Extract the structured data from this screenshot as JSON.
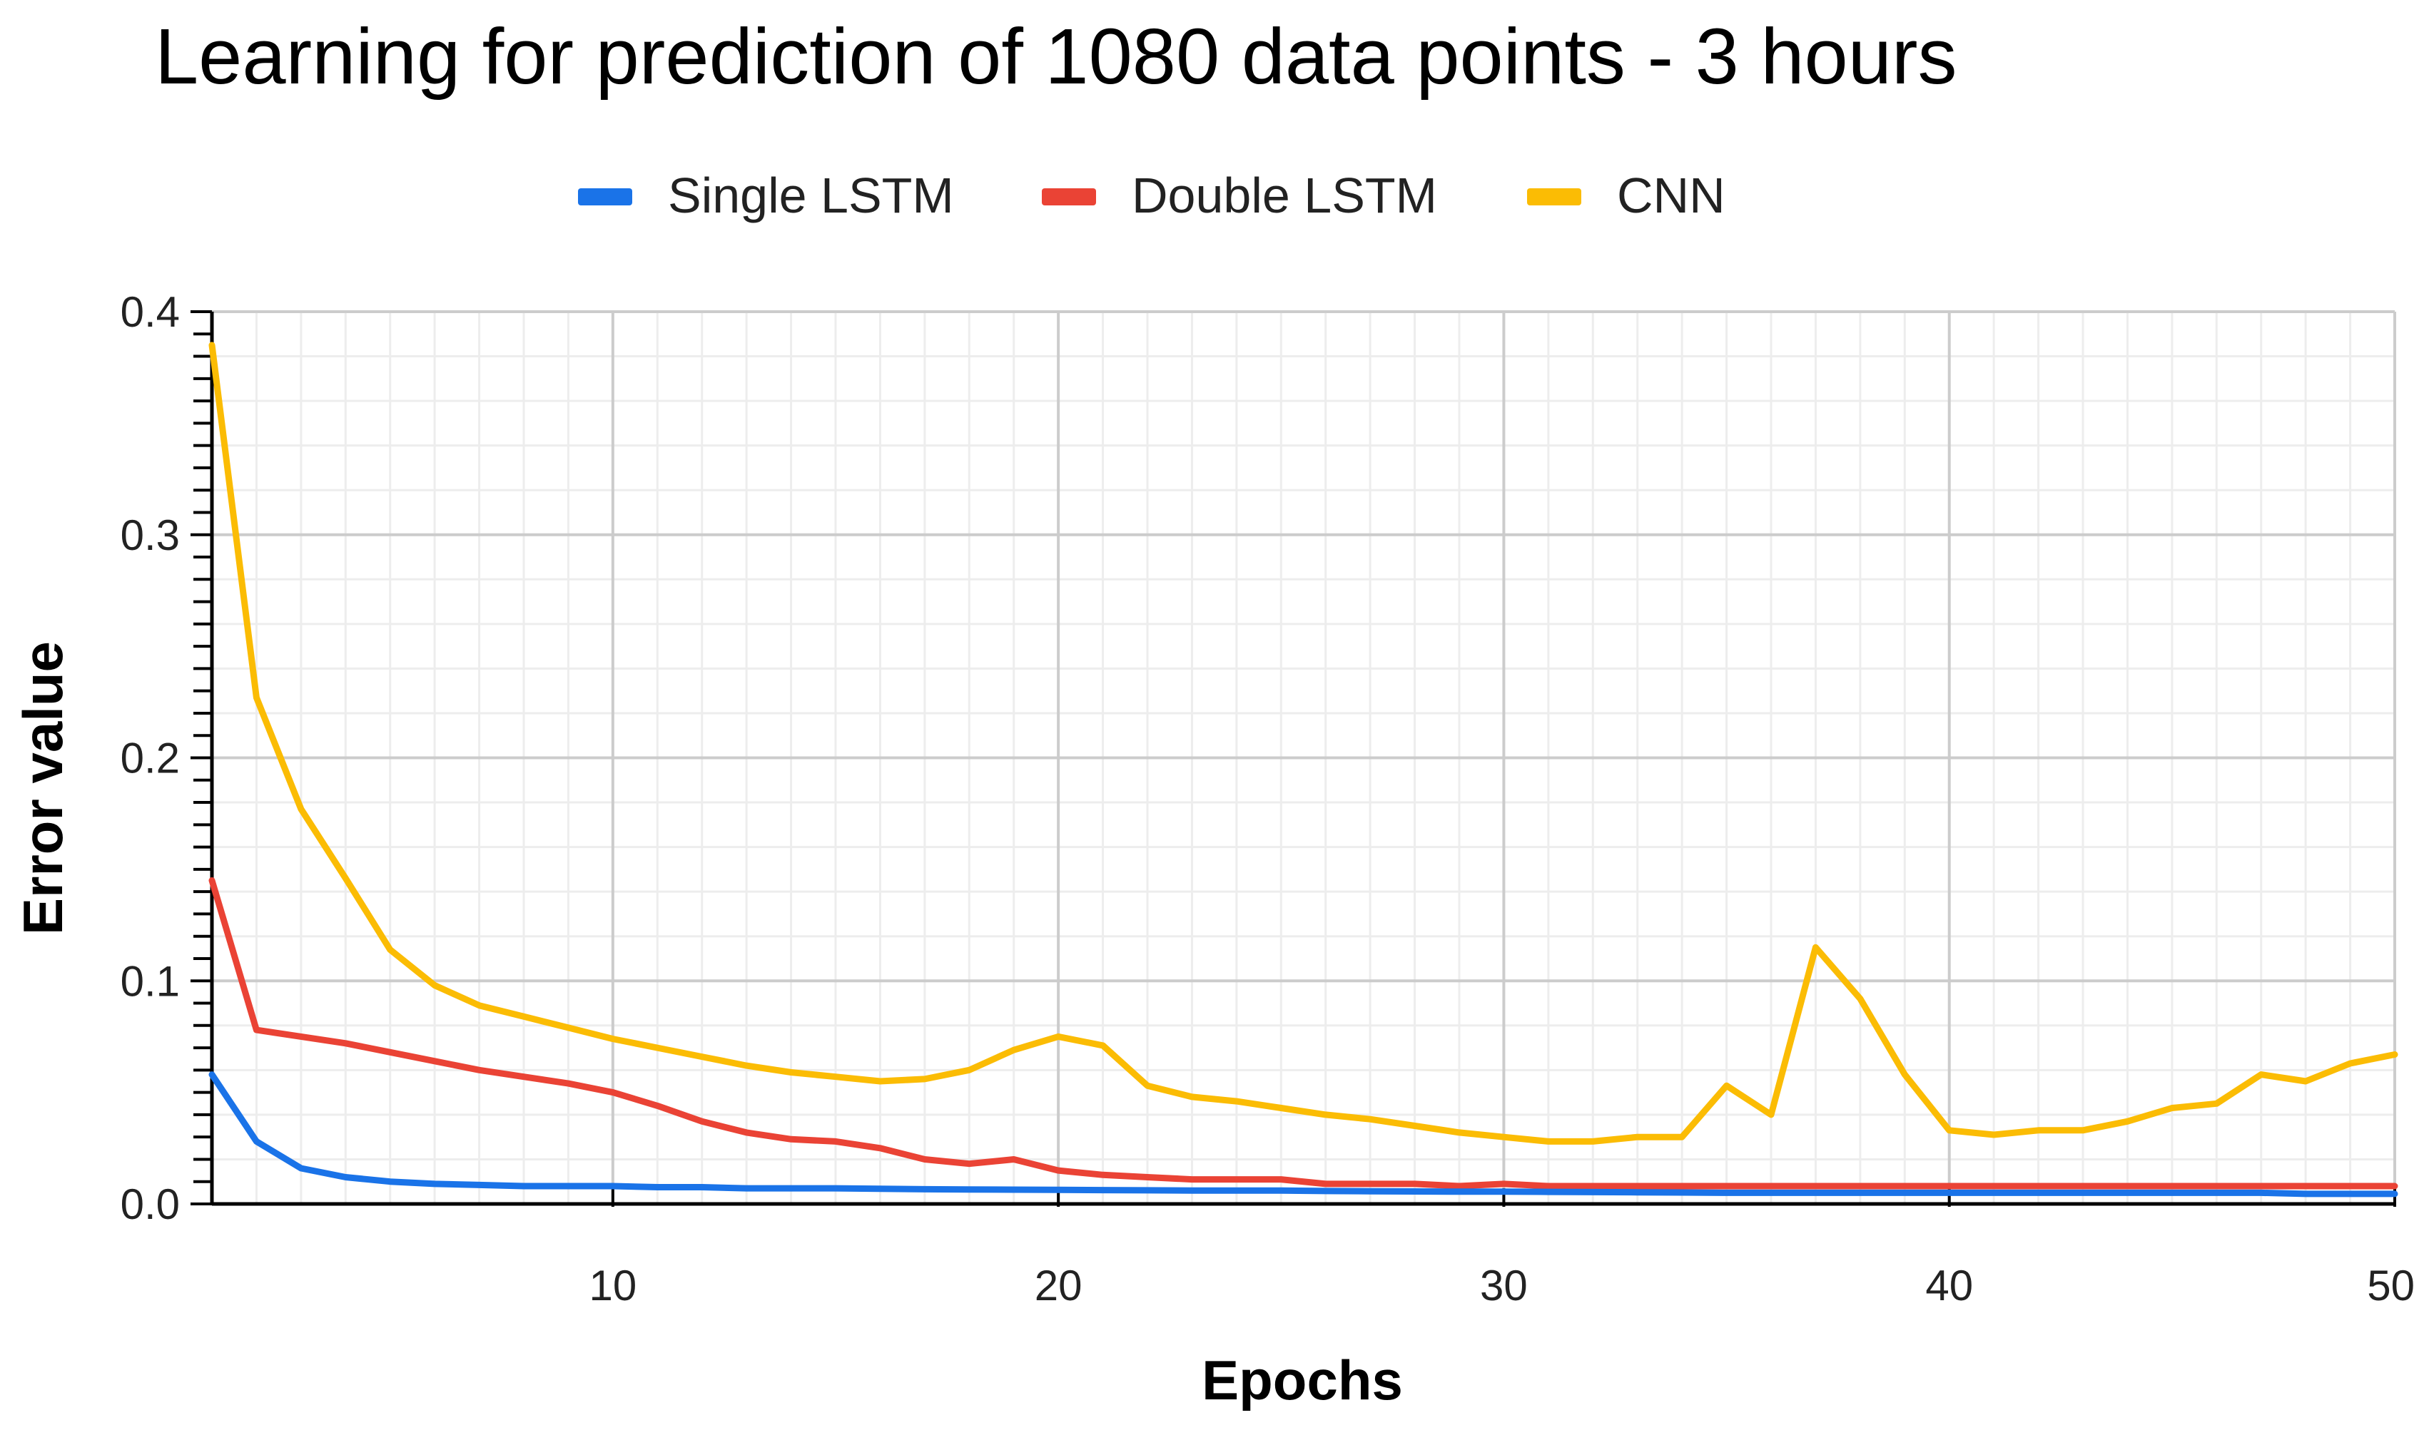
{
  "chart_data": {
    "type": "line",
    "title": "Learning for prediction of 1080 data points - 3 hours",
    "xlabel": "Epochs",
    "ylabel": "Error value",
    "xlim": [
      1,
      50
    ],
    "ylim": [
      0,
      0.4
    ],
    "x_ticks": [
      10,
      20,
      30,
      40,
      50
    ],
    "y_ticks": [
      0,
      0.1,
      0.2,
      0.3,
      0.4
    ],
    "y_tick_labels": [
      "0.0",
      "0.1",
      "0.2",
      "0.3",
      "0.4"
    ],
    "grid": true,
    "legend_position": "top",
    "x": [
      1,
      2,
      3,
      4,
      5,
      6,
      7,
      8,
      9,
      10,
      11,
      12,
      13,
      14,
      15,
      16,
      17,
      18,
      19,
      20,
      21,
      22,
      23,
      24,
      25,
      26,
      27,
      28,
      29,
      30,
      31,
      32,
      33,
      34,
      35,
      36,
      37,
      38,
      39,
      40,
      41,
      42,
      43,
      44,
      45,
      46,
      47,
      48,
      49,
      50
    ],
    "series": [
      {
        "name": "Single LSTM",
        "color": "#1a73e8",
        "values": [
          0.058,
          0.028,
          0.016,
          0.012,
          0.01,
          0.009,
          0.0085,
          0.008,
          0.008,
          0.008,
          0.0075,
          0.0075,
          0.007,
          0.007,
          0.007,
          0.0068,
          0.0066,
          0.0065,
          0.0064,
          0.0063,
          0.0062,
          0.0061,
          0.006,
          0.006,
          0.006,
          0.0058,
          0.0057,
          0.0056,
          0.0055,
          0.0055,
          0.0054,
          0.0053,
          0.0052,
          0.0051,
          0.005,
          0.005,
          0.005,
          0.005,
          0.005,
          0.005,
          0.005,
          0.005,
          0.005,
          0.005,
          0.005,
          0.005,
          0.005,
          0.0045,
          0.0045,
          0.0045
        ]
      },
      {
        "name": "Double LSTM",
        "color": "#ea4335",
        "values": [
          0.145,
          0.078,
          0.075,
          0.072,
          0.068,
          0.064,
          0.06,
          0.057,
          0.054,
          0.05,
          0.044,
          0.037,
          0.032,
          0.029,
          0.028,
          0.025,
          0.02,
          0.018,
          0.02,
          0.015,
          0.013,
          0.012,
          0.011,
          0.011,
          0.011,
          0.009,
          0.009,
          0.009,
          0.008,
          0.009,
          0.008,
          0.008,
          0.008,
          0.008,
          0.008,
          0.008,
          0.008,
          0.008,
          0.008,
          0.008,
          0.008,
          0.008,
          0.008,
          0.008,
          0.008,
          0.008,
          0.008,
          0.008,
          0.008,
          0.008
        ]
      },
      {
        "name": "CNN",
        "color": "#fbbc04",
        "values": [
          0.385,
          0.227,
          0.177,
          0.146,
          0.114,
          0.098,
          0.089,
          0.084,
          0.079,
          0.074,
          0.07,
          0.066,
          0.062,
          0.059,
          0.057,
          0.055,
          0.056,
          0.06,
          0.069,
          0.075,
          0.071,
          0.053,
          0.048,
          0.046,
          0.043,
          0.04,
          0.038,
          0.035,
          0.032,
          0.03,
          0.028,
          0.028,
          0.03,
          0.03,
          0.053,
          0.04,
          0.115,
          0.092,
          0.058,
          0.033,
          0.031,
          0.033,
          0.033,
          0.037,
          0.043,
          0.045,
          0.058,
          0.055,
          0.063,
          0.067
        ]
      }
    ]
  }
}
